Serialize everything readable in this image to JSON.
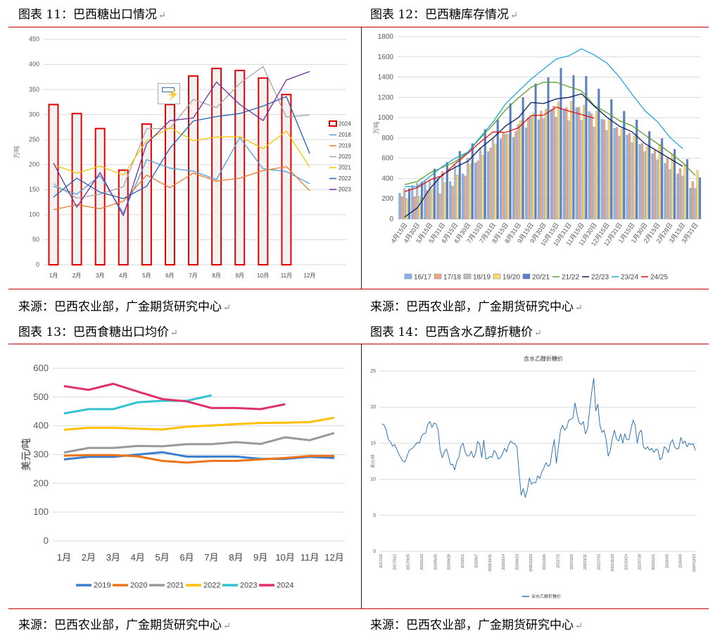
{
  "captions": {
    "c11": "图表 11：巴西糖出口情况",
    "c12": "图表 12：巴西糖库存情况",
    "c13": "图表 13：巴西食糖出口均价",
    "c14": "图表 14：巴西含水乙醇折糖价",
    "source": "来源：巴西农业部，广金期货研究中心",
    "mark": "↵"
  },
  "chart_data": [
    {
      "id": "exports",
      "type": "bar+line",
      "title": "",
      "ylabel": "万吨",
      "ylim": [
        0,
        450
      ],
      "yticks": [
        0,
        50,
        100,
        150,
        200,
        250,
        300,
        350,
        400,
        450
      ],
      "categories": [
        "1月",
        "2月",
        "3月",
        "4月",
        "5月",
        "6月",
        "7月",
        "8月",
        "9月",
        "10月",
        "11月",
        "12月"
      ],
      "bar_series": {
        "name": "2024",
        "color": "#e00000",
        "values": [
          320,
          302,
          272,
          189,
          281,
          320,
          377,
          392,
          388,
          373,
          340,
          null
        ]
      },
      "series": [
        {
          "name": "2018",
          "color": "#4a9fd6",
          "values": [
            157,
            141,
            178,
            103,
            210,
            193,
            187,
            170,
            254,
            192,
            186,
            162
          ]
        },
        {
          "name": "2019",
          "color": "#e87a2a",
          "values": [
            110,
            120,
            112,
            127,
            179,
            154,
            183,
            167,
            173,
            188,
            196,
            148
          ]
        },
        {
          "name": "2020",
          "color": "#a6a6a6",
          "values": [
            162,
            133,
            141,
            156,
            272,
            272,
            330,
            314,
            362,
            396,
            295,
            299
          ]
        },
        {
          "name": "2021",
          "color": "#f5c400",
          "values": [
            200,
            183,
            197,
            179,
            248,
            274,
            248,
            255,
            256,
            232,
            267,
            195
          ]
        },
        {
          "name": "2022",
          "color": "#2b5fb0",
          "values": [
            135,
            173,
            145,
            132,
            157,
            233,
            287,
            296,
            302,
            317,
            336,
            222
          ]
        },
        {
          "name": "2023",
          "color": "#7030a0",
          "values": [
            203,
            115,
            184,
            98,
            242,
            288,
            293,
            365,
            320,
            288,
            369,
            386
          ]
        }
      ],
      "legend": "right"
    },
    {
      "id": "stocks",
      "type": "bar+line",
      "ylabel": "万吨",
      "ylim": [
        0,
        1800
      ],
      "yticks": [
        0,
        200,
        400,
        600,
        800,
        1000,
        1200,
        1400,
        1600,
        1800
      ],
      "categories": [
        "4月15日",
        "4月30日",
        "5月15日",
        "5月31日",
        "6月15日",
        "6月30日",
        "7月15日",
        "7月31日",
        "8月15日",
        "8月31日",
        "9月15日",
        "9月30日",
        "10月15日",
        "10月31日",
        "11月15日",
        "11月30日",
        "12月15日",
        "12月31日",
        "1月15日",
        "1月30日",
        "2月15日",
        "2月28日",
        "3月15日",
        "3月31日"
      ],
      "bar_series": [
        {
          "name": "16/17",
          "color": "#8db4e2",
          "values": [
            255,
            330,
            370,
            400,
            370,
            445,
            555,
            665,
            790,
            805,
            900,
            980,
            1080,
            1080,
            1100,
            1060,
            985,
            895,
            830,
            735,
            645,
            550,
            445,
            305
          ]
        },
        {
          "name": "17/18",
          "color": "#f4a582",
          "values": [
            220,
            220,
            280,
            250,
            325,
            425,
            575,
            700,
            855,
            865,
            1000,
            1065,
            1115,
            1100,
            1105,
            1040,
            980,
            905,
            845,
            745,
            680,
            600,
            500,
            370
          ]
        },
        {
          "name": "18/19",
          "color": "#c0c0c0",
          "values": [
            300,
            355,
            385,
            470,
            530,
            600,
            700,
            790,
            835,
            935,
            1010,
            990,
            1005,
            970,
            975,
            910,
            875,
            820,
            755,
            665,
            585,
            490,
            425,
            305
          ]
        },
        {
          "name": "19/20",
          "color": "#ffd966",
          "values": [
            200,
            225,
            295,
            360,
            435,
            540,
            630,
            740,
            840,
            970,
            1045,
            1085,
            1155,
            1160,
            1125,
            1065,
            985,
            890,
            820,
            715,
            735,
            640,
            540,
            480
          ]
        },
        {
          "name": "20/21",
          "color": "#5b7fc7",
          "values": [
            300,
            365,
            495,
            560,
            670,
            745,
            885,
            980,
            1140,
            1200,
            1335,
            1395,
            1490,
            1420,
            1410,
            1285,
            1180,
            1065,
            980,
            865,
            795,
            690,
            590,
            410
          ]
        }
      ],
      "series": [
        {
          "name": "21/22",
          "color": "#5aa02c",
          "values": [
            340,
            370,
            455,
            510,
            565,
            660,
            800,
            930,
            1080,
            1195,
            1300,
            1350,
            1350,
            1305,
            1265,
            1120,
            1050,
            970,
            920,
            830,
            745,
            655,
            555,
            430
          ]
        },
        {
          "name": "22/23",
          "color": "#0b1f5c",
          "values": [
            20,
            110,
            300,
            440,
            510,
            570,
            700,
            800,
            920,
            1000,
            1150,
            1140,
            1185,
            1200,
            1235,
            1115,
            1005,
            915,
            860,
            745,
            670,
            595,
            520,
            null
          ]
        },
        {
          "name": "23/24",
          "color": "#1fa8e0",
          "values": [
            320,
            320,
            420,
            520,
            600,
            660,
            810,
            960,
            1140,
            1260,
            1380,
            1480,
            1580,
            1610,
            1680,
            1620,
            1540,
            1400,
            1230,
            1070,
            960,
            805,
            695,
            null
          ]
        },
        {
          "name": "24/25",
          "color": "#e01010",
          "values": [
            270,
            310,
            385,
            430,
            545,
            650,
            760,
            860,
            855,
            900,
            1020,
            1025,
            1105,
            1065,
            1030,
            995,
            null,
            null,
            null,
            null,
            null,
            null,
            null,
            null
          ]
        }
      ],
      "legend": "bottom"
    },
    {
      "id": "price",
      "type": "line",
      "ylabel": "美元/吨",
      "ylim": [
        0,
        600
      ],
      "yticks": [
        0,
        100,
        200,
        300,
        400,
        500,
        600
      ],
      "categories": [
        "1月",
        "2月",
        "3月",
        "4月",
        "5月",
        "6月",
        "7月",
        "8月",
        "9月",
        "10月",
        "11月",
        "12月"
      ],
      "series": [
        {
          "name": "2019",
          "color": "#3a7fcf",
          "values": [
            283,
            292,
            292,
            300,
            308,
            293,
            293,
            293,
            285,
            285,
            292,
            288
          ]
        },
        {
          "name": "2020",
          "color": "#ed7418",
          "values": [
            296,
            298,
            298,
            294,
            278,
            272,
            278,
            278,
            283,
            288,
            295,
            295
          ]
        },
        {
          "name": "2021",
          "color": "#999999",
          "values": [
            307,
            323,
            323,
            330,
            329,
            336,
            336,
            343,
            337,
            360,
            350,
            375
          ]
        },
        {
          "name": "2022",
          "color": "#ffc000",
          "values": [
            386,
            393,
            393,
            390,
            387,
            397,
            401,
            406,
            410,
            411,
            413,
            428
          ]
        },
        {
          "name": "2023",
          "color": "#33c3d0",
          "values": [
            443,
            458,
            458,
            482,
            487,
            487,
            506,
            null,
            null,
            null,
            null,
            null
          ]
        },
        {
          "name": "2024",
          "color": "#e0306a",
          "values": [
            538,
            525,
            546,
            519,
            493,
            485,
            462,
            462,
            458,
            475,
            null,
            null
          ]
        }
      ],
      "legend": "bottom"
    },
    {
      "id": "ethanol",
      "type": "line",
      "title": "含水乙醇折糖价",
      "ylabel": "美分/磅",
      "ylim": [
        0,
        25
      ],
      "yticks": [
        0,
        5,
        10,
        15,
        20,
        25
      ],
      "xticks": [
        "2017/1/6",
        "2017/5/12",
        "2017/9/15",
        "2018/1/19",
        "2018/5/25",
        "2018/9/28",
        "2019/2/1",
        "2019/6/7",
        "2019/10/11",
        "2020/2/14",
        "2020/6/19",
        "2020/10/23",
        "2021/2/26",
        "2021/7/2",
        "2021/11/5",
        "2022/3/11",
        "2022/7/15",
        "2022/11/18",
        "2023/3/24",
        "2023/7/28",
        "2023/12/1",
        "2024/4/5",
        "2024/8/9",
        "2024/12/13"
      ],
      "series": [
        {
          "name": "含水乙醇折糖价",
          "color": "#2e75b6",
          "values": [
            17.7,
            17.5,
            16.8,
            15.5,
            15.2,
            14.6,
            14.8,
            14.2,
            13.5,
            13.0,
            12.5,
            12.4,
            13.2,
            14.0,
            14.2,
            14.4,
            14.8,
            15.1,
            15.0,
            16.0,
            16.3,
            16.4,
            17.6,
            18.0,
            17.2,
            17.8,
            17.7,
            16.8,
            14.0,
            13.0,
            13.8,
            14.2,
            13.2,
            12.0,
            12.1,
            11.3,
            12.5,
            13.0,
            14.6,
            15.0,
            13.8,
            13.2,
            13.3,
            13.9,
            13.0,
            13.5,
            15.2,
            14.9,
            13.0,
            15.4,
            12.8,
            12.9,
            13.2,
            13.0,
            14.0,
            13.6,
            12.8,
            13.0,
            13.5,
            14.3,
            13.8,
            14.8,
            15.3,
            15.0,
            14.9,
            14.5,
            11.0,
            7.8,
            8.7,
            7.5,
            8.5,
            10.2,
            9.3,
            9.6,
            9.5,
            10.5,
            10.1,
            11.0,
            11.6,
            12.3,
            11.8,
            12.0,
            14.0,
            15.5,
            12.2,
            14.5,
            16.8,
            17.5,
            16.8,
            17.2,
            18.2,
            18.3,
            18.5,
            20.6,
            19.0,
            17.8,
            17.6,
            18.0,
            16.3,
            17.0,
            19.5,
            22.0,
            24.0,
            19.5,
            20.4,
            17.5,
            16.5,
            16.8,
            15.5,
            13.2,
            14.0,
            15.7,
            16.8,
            15.6,
            15.3,
            16.3,
            15.0,
            16.3,
            15.5,
            15.5,
            17.0,
            18.2,
            17.5,
            15.0,
            16.5,
            16.8,
            14.5,
            14.2,
            14.5,
            14.0,
            14.3,
            13.7,
            14.2,
            14.0,
            12.7,
            13.0,
            14.5,
            14.3,
            13.7,
            15.0,
            15.5,
            14.5,
            14.2,
            14.3,
            15.8,
            15.0,
            15.3,
            14.5,
            15.0,
            14.8,
            14.9,
            14.0
          ]
        }
      ],
      "legend": "bottom"
    }
  ]
}
